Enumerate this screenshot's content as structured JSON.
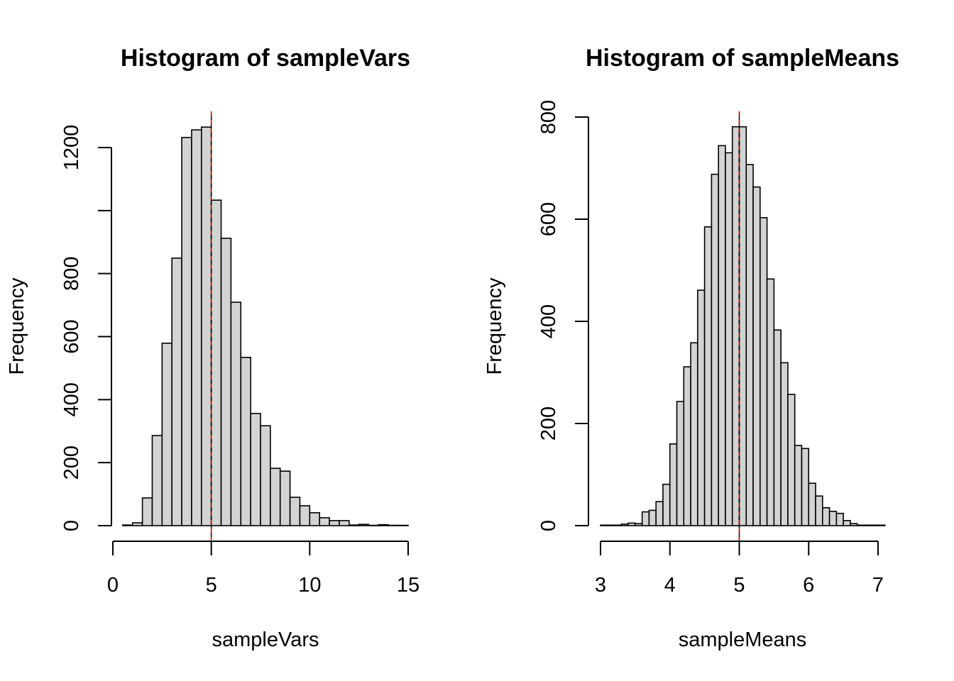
{
  "chart_data": [
    {
      "type": "bar",
      "title": "Histogram of sampleVars",
      "xlabel": "sampleVars",
      "ylabel": "Frequency",
      "bin_start": 0.5,
      "bin_width": 0.5,
      "values": [
        2,
        9,
        88,
        286,
        579,
        849,
        1232,
        1256,
        1265,
        1033,
        912,
        709,
        534,
        356,
        317,
        182,
        173,
        90,
        63,
        41,
        25,
        16,
        16,
        2,
        4,
        1,
        3,
        1,
        1
      ],
      "xlim": [
        0,
        15
      ],
      "ylim": [
        0,
        1200
      ],
      "xticks": [
        0,
        5,
        10,
        15
      ],
      "xtick_labels": [
        "0",
        "5",
        "10",
        "15"
      ],
      "yticks": [
        0,
        200,
        400,
        600,
        800,
        1000,
        1200
      ],
      "ytick_labels": [
        "0",
        "200",
        "400",
        "600",
        "800",
        "",
        "1200"
      ],
      "vline": 5,
      "vline_color": "#ff0000",
      "bar_color": "#d3d3d3"
    },
    {
      "type": "bar",
      "title": "Histogram of sampleMeans",
      "xlabel": "sampleMeans",
      "ylabel": "Frequency",
      "bin_start": 3.0,
      "bin_width": 0.1,
      "values": [
        1,
        1,
        1,
        3,
        5,
        4,
        27,
        30,
        47,
        81,
        160,
        243,
        311,
        358,
        461,
        585,
        688,
        744,
        730,
        781,
        781,
        707,
        663,
        603,
        483,
        383,
        319,
        257,
        157,
        151,
        83,
        58,
        35,
        28,
        24,
        10,
        4,
        1,
        1,
        1,
        1
      ],
      "xlim": [
        3,
        7
      ],
      "ylim": [
        0,
        800
      ],
      "xticks": [
        3,
        4,
        5,
        6,
        7
      ],
      "xtick_labels": [
        "3",
        "4",
        "5",
        "6",
        "7"
      ],
      "yticks": [
        0,
        200,
        400,
        600,
        800
      ],
      "ytick_labels": [
        "0",
        "200",
        "400",
        "600",
        "800"
      ],
      "vline": 5,
      "vline_color": "#ff0000",
      "bar_color": "#d3d3d3"
    }
  ]
}
